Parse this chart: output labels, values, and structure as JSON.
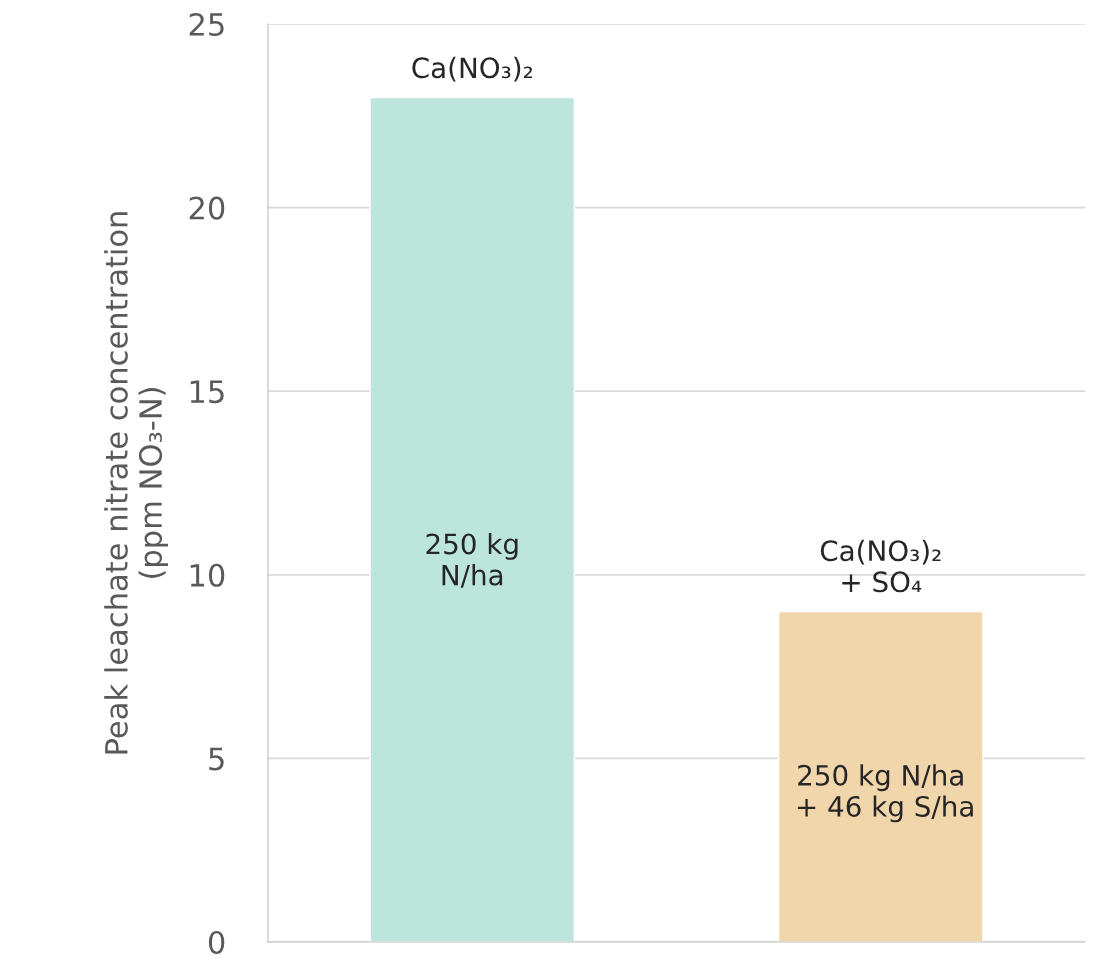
{
  "chart_data": {
    "type": "bar",
    "ylabel": "Peak leachate nitrate concentration\n(ppm NO₃-N)",
    "categories": [
      null,
      null
    ],
    "values": [
      23,
      9
    ],
    "colors": [
      "#b5ede0",
      "#fed89f"
    ],
    "ylim": [
      0,
      25
    ],
    "yticks": [
      0,
      5,
      10,
      15,
      20,
      25
    ],
    "grid": "y",
    "annotations": [
      "Ca(NO₃)₂",
      "250 kg\nN/ha",
      "Ca(NO₃)₂\n+ SO₄",
      "250 kg N/ha\n + 46 kg S/ha"
    ]
  }
}
